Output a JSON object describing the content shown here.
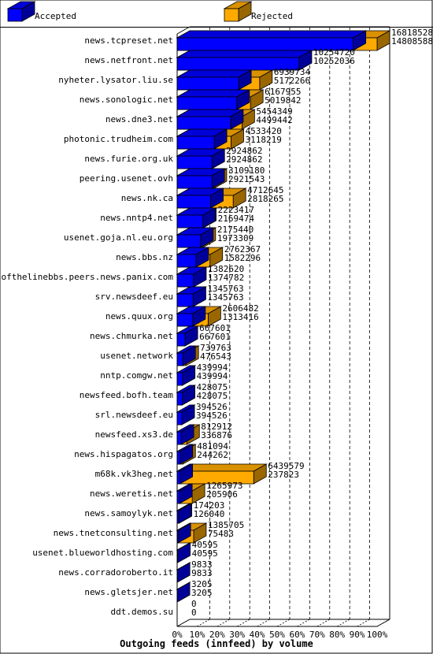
{
  "chart_data": {
    "type": "bar",
    "title": "",
    "xlabel": "Outgoing feeds (innfeed) by volume",
    "ylabel": "",
    "stacked": "overlay",
    "orientation": "horizontal",
    "xlim": [
      0,
      100
    ],
    "x_unit": "%",
    "grid": "vertical dashed",
    "legend_position": "top",
    "colors": {
      "accepted": "#0000ff",
      "rejected": "#ffaa00"
    },
    "x_ticks": [
      "0%",
      "10%",
      "20%",
      "30%",
      "40%",
      "50%",
      "60%",
      "70%",
      "80%",
      "90%",
      "100%"
    ],
    "categories": [
      "news.tcpreset.net",
      "news.netfront.net",
      "nyheter.lysator.liu.se",
      "news.sonologic.net",
      "news.dne3.net",
      "photonic.trudheim.com",
      "news.furie.org.uk",
      "peering.usenet.ovh",
      "news.nk.ca",
      "news.nntp4.net",
      "usenet.goja.nl.eu.org",
      "news.bbs.nz",
      "endofthelinebbs.peers.news.panix.com",
      "srv.newsdeef.eu",
      "news.quux.org",
      "news.chmurka.net",
      "usenet.network",
      "nntp.comgw.net",
      "newsfeed.bofh.team",
      "srl.newsdeef.eu",
      "newsfeed.xs3.de",
      "news.hispagatos.org",
      "m68k.vk3heg.net",
      "news.weretis.net",
      "news.samoylyk.net",
      "news.tnetconsulting.net",
      "usenet.blueworldhosting.com",
      "news.corradoroberto.it",
      "news.gletsjer.net",
      "ddt.demos.su"
    ],
    "series": [
      {
        "name": "Accepted",
        "values": [
          14808588,
          10252036,
          5172266,
          5019842,
          4499442,
          3118219,
          2924862,
          2921543,
          2818265,
          2169474,
          1973309,
          1582296,
          1374782,
          1345763,
          1313416,
          667601,
          476543,
          439994,
          428075,
          394526,
          336876,
          244262,
          237823,
          205906,
          126040,
          75483,
          40595,
          9833,
          3205,
          0
        ]
      },
      {
        "name": "Rejected",
        "values": [
          16818528,
          10254720,
          6939734,
          6167955,
          5454349,
          4533420,
          2924862,
          3109180,
          4712645,
          2223417,
          2175440,
          2762367,
          1382620,
          1345763,
          2606482,
          667601,
          739763,
          439994,
          428075,
          394526,
          812912,
          481094,
          6439579,
          1265973,
          174203,
          1385705,
          40595,
          9833,
          3205,
          0
        ]
      }
    ]
  }
}
